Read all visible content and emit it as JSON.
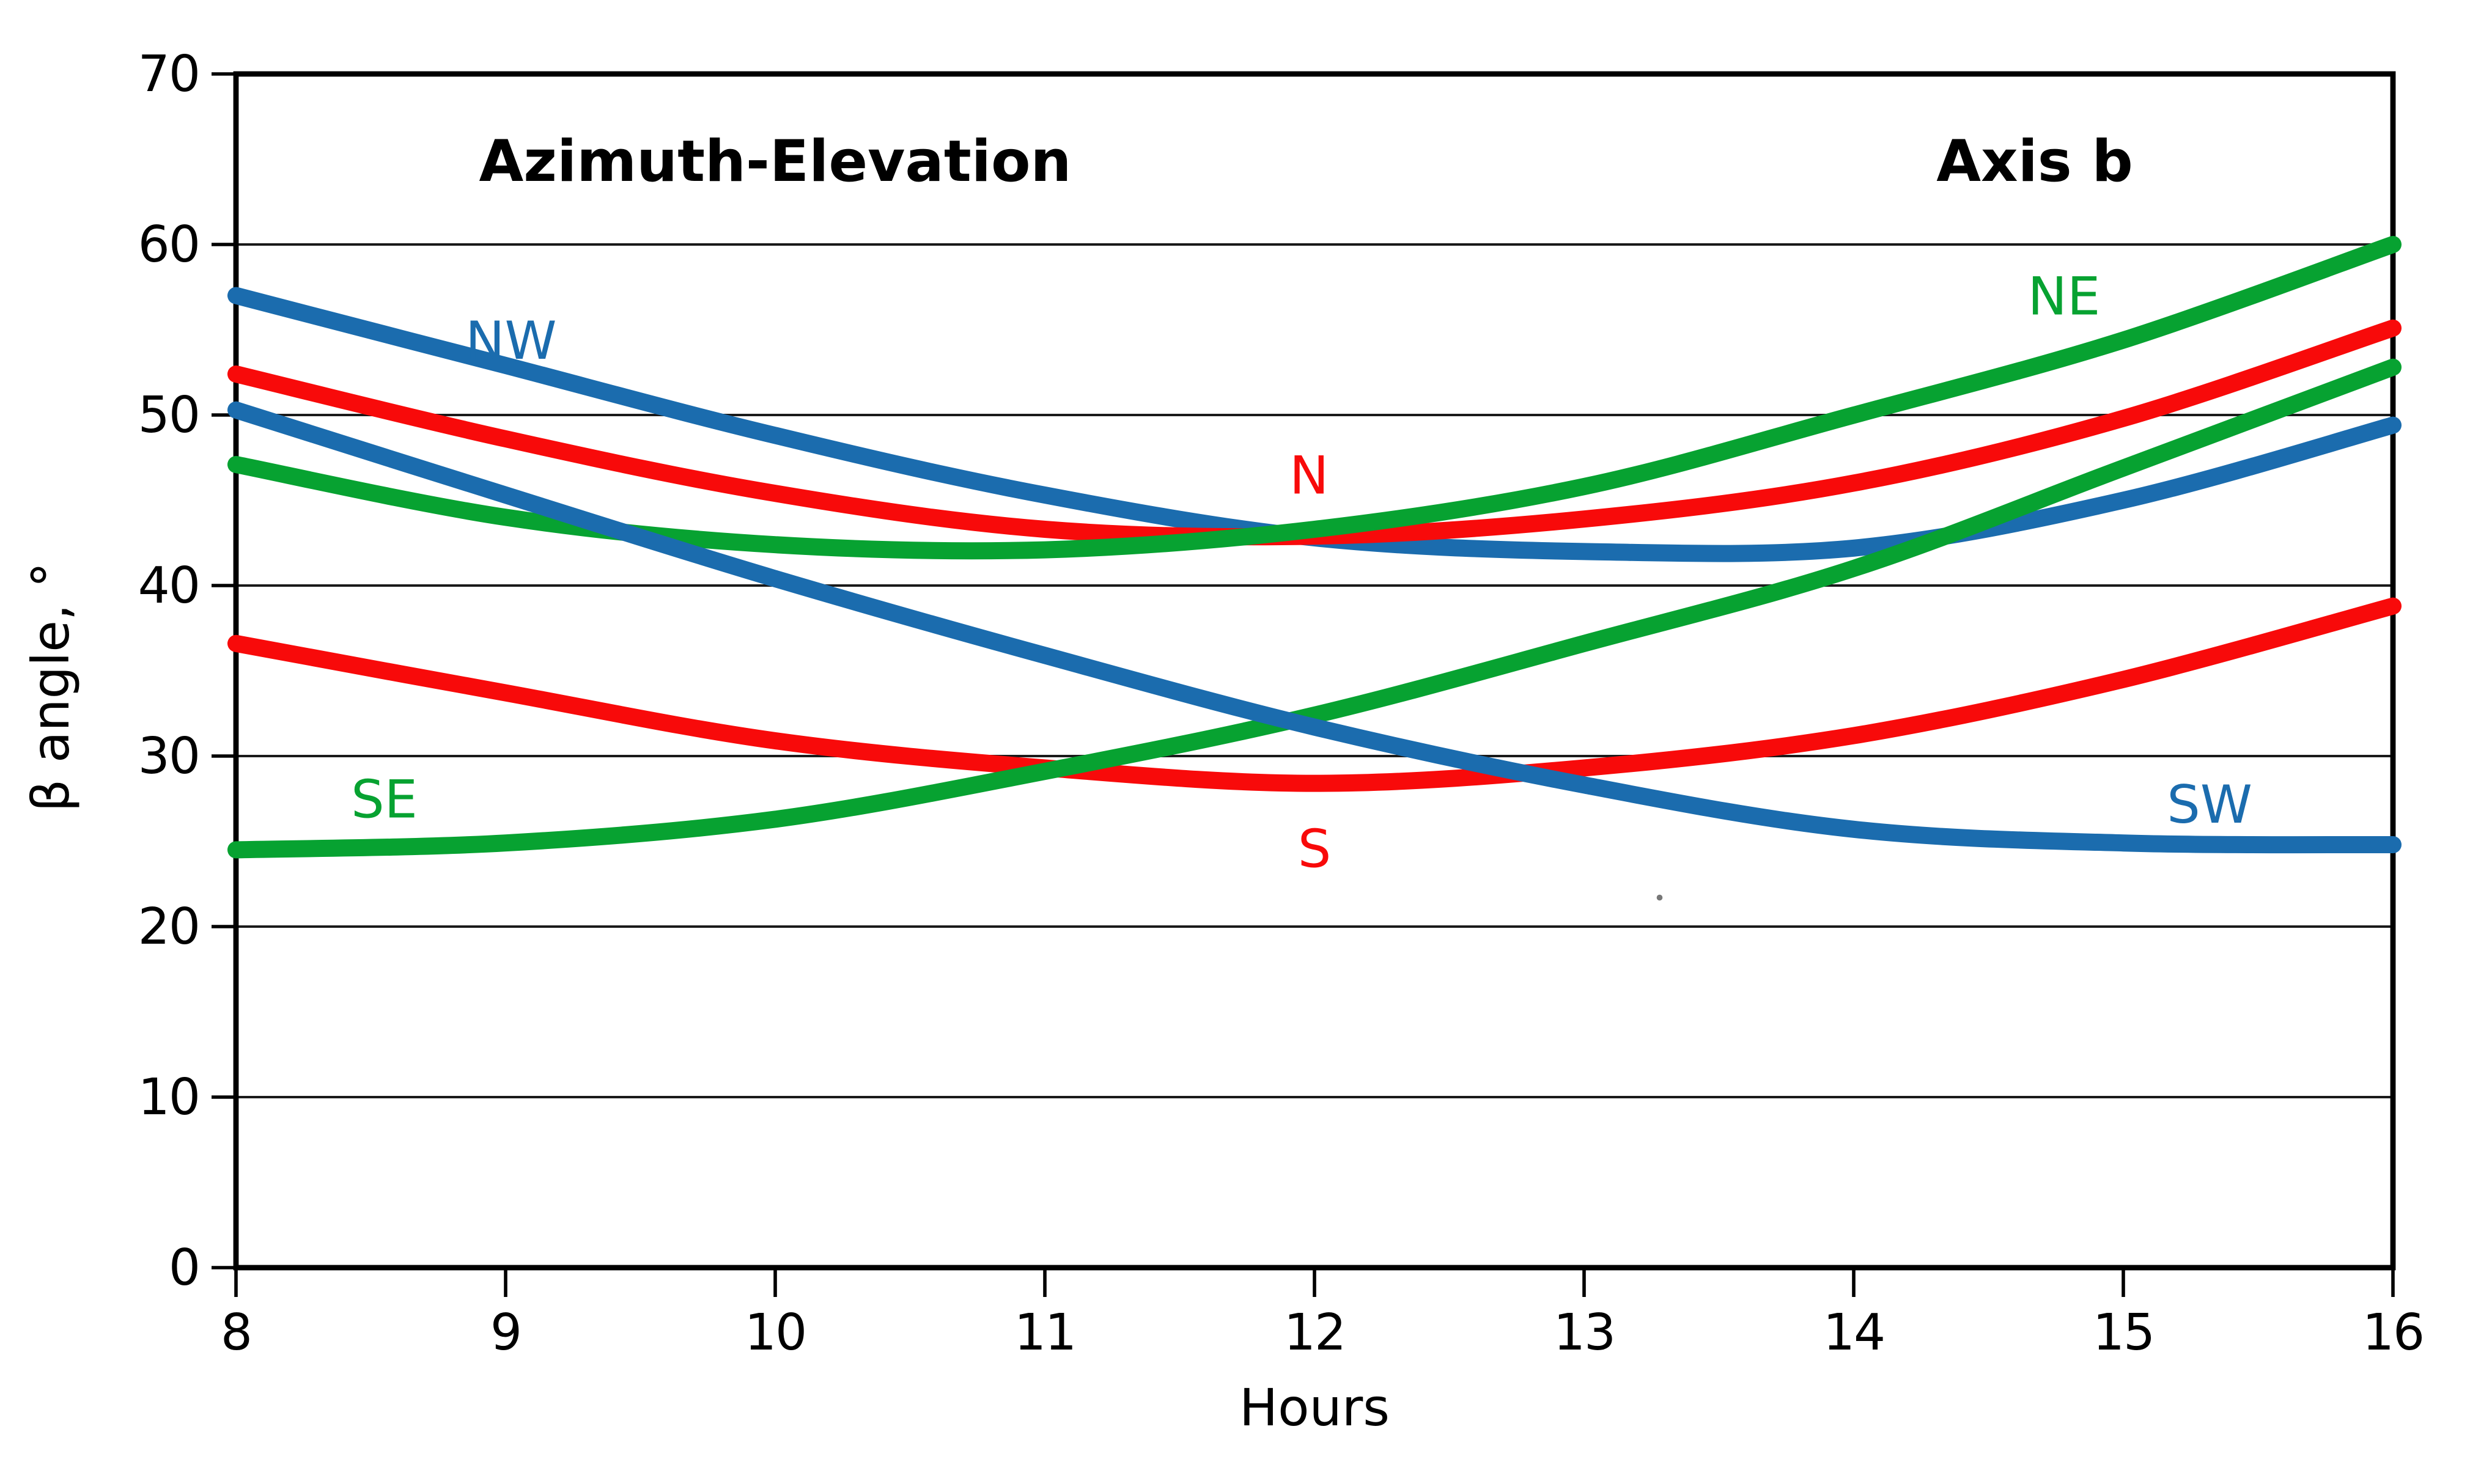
{
  "titles": {
    "left": "Azimuth-Elevation",
    "right": "Axis b"
  },
  "chart_data": {
    "type": "line",
    "xlabel": "Hours",
    "ylabel": "β angle, °",
    "x": [
      8,
      9,
      10,
      11,
      12,
      13,
      14,
      15,
      16
    ],
    "xtick_labels": [
      "8",
      "9",
      "10",
      "11",
      "12",
      "13",
      "14",
      "15",
      "16"
    ],
    "yticks": [
      0,
      10,
      20,
      30,
      40,
      50,
      60,
      70
    ],
    "ytick_labels": [
      "0",
      "10",
      "20",
      "30",
      "40",
      "50",
      "60",
      "70"
    ],
    "xlim": [
      8,
      16
    ],
    "ylim": [
      0,
      70
    ],
    "grid": "horizontal-only",
    "legend_position": "inline-labels",
    "series": [
      {
        "name": "NW",
        "color": "#1b6cae",
        "values": [
          57.0,
          52.9,
          48.8,
          45.3,
          42.8,
          42.0,
          42.2,
          45.0,
          49.4
        ],
        "label": {
          "text": "NW",
          "x": 9.02,
          "y": 54.3
        }
      },
      {
        "name": "N",
        "color": "#f80a0a",
        "values": [
          52.4,
          48.6,
          45.4,
          43.3,
          42.9,
          43.9,
          46.0,
          49.8,
          55.1
        ],
        "label": {
          "text": "N",
          "x": 11.98,
          "y": 46.4
        }
      },
      {
        "name": "NE",
        "color": "#07a231",
        "values": [
          47.1,
          44.0,
          42.4,
          42.1,
          43.3,
          45.8,
          50.0,
          54.4,
          60.0
        ],
        "label": {
          "text": "NE",
          "x": 14.78,
          "y": 56.9
        }
      },
      {
        "name": "S",
        "color": "#f80a0a",
        "values": [
          36.6,
          33.7,
          30.9,
          29.3,
          28.4,
          29.3,
          31.2,
          34.5,
          38.8
        ],
        "label": {
          "text": "S",
          "x": 12.0,
          "y": 24.5
        }
      },
      {
        "name": "SE",
        "color": "#07a231",
        "values": [
          24.5,
          24.9,
          26.3,
          29.1,
          32.4,
          36.6,
          41.0,
          46.9,
          52.8
        ],
        "label": {
          "text": "SE",
          "x": 8.55,
          "y": 27.4
        }
      },
      {
        "name": "SW",
        "color": "#1b6cae",
        "values": [
          50.3,
          45.3,
          40.4,
          35.9,
          31.7,
          28.3,
          25.7,
          24.9,
          24.8
        ],
        "label": {
          "text": "SW",
          "x": 15.32,
          "y": 27.1
        }
      }
    ],
    "speck": {
      "x": 13.28,
      "y": 21.7
    }
  }
}
